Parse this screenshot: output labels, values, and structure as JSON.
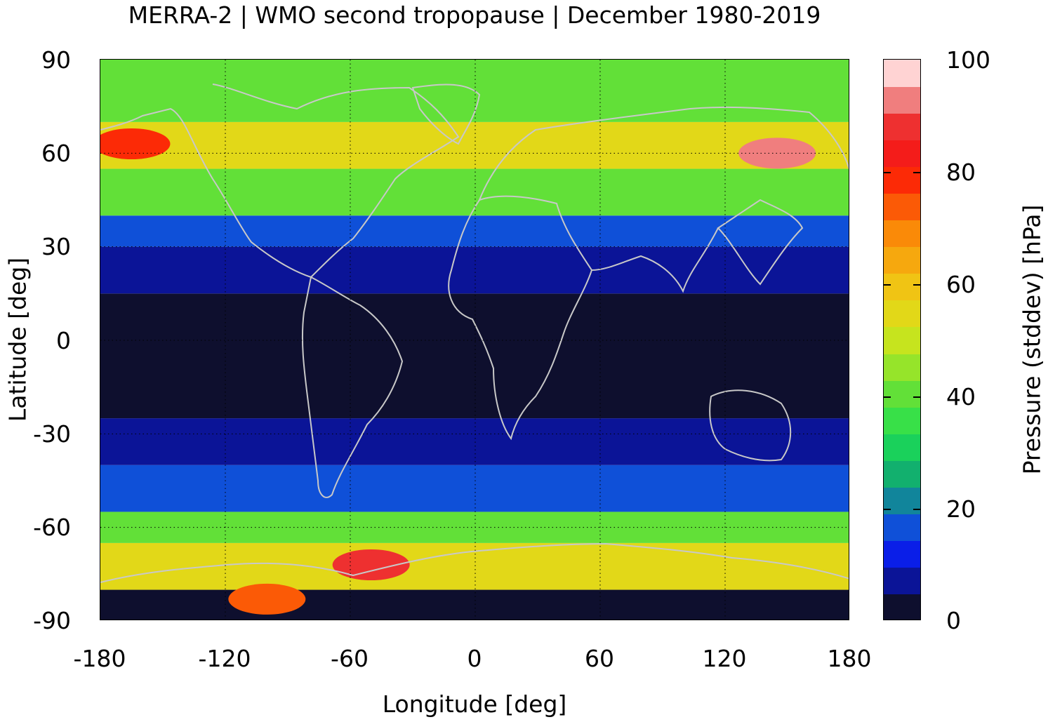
{
  "title": "MERRA-2 | WMO second tropopause | December 1980-2019",
  "chart_data": {
    "type": "heatmap",
    "title": "MERRA-2 | WMO second tropopause | December 1980-2019",
    "xlabel": "Longitude [deg]",
    "ylabel": "Latitude [deg]",
    "xlim": [
      -180,
      180
    ],
    "ylim": [
      -90,
      90
    ],
    "xticks": [
      "-180",
      "-120",
      "-60",
      "0",
      "60",
      "120",
      "180"
    ],
    "yticks": [
      "90",
      "60",
      "30",
      "0",
      "-30",
      "-60",
      "-90"
    ],
    "grid": "dotted at 60 deg longitude / 30 deg latitude",
    "colorbar": {
      "label": "Pressure (stddev) [hPa]",
      "range": [
        0,
        100
      ],
      "ticks": [
        "0",
        "20",
        "40",
        "60",
        "80",
        "100"
      ],
      "levels": [
        0,
        5,
        10,
        15,
        20,
        25,
        30,
        35,
        40,
        45,
        50,
        55,
        60,
        65,
        70,
        75,
        80,
        85,
        90,
        95,
        100
      ],
      "colors": [
        "#0e0f2e",
        "#0b1497",
        "#0a1ee8",
        "#0f50d8",
        "#11859b",
        "#12b06e",
        "#1ad15b",
        "#38e048",
        "#62e038",
        "#96e42a",
        "#c6e41e",
        "#e2d818",
        "#f0c414",
        "#f6a80e",
        "#fa8a08",
        "#fb5a06",
        "#fc2a06",
        "#f41c1a",
        "#ee3030",
        "#f07e7e",
        "#ffd3d3"
      ]
    },
    "field": {
      "description_bands": [
        {
          "lat": [
            -90,
            -80
          ],
          "value": 3
        },
        {
          "lat": [
            -80,
            -65
          ],
          "value": 55
        },
        {
          "lat": [
            -65,
            -55
          ],
          "value": 40
        },
        {
          "lat": [
            -55,
            -40
          ],
          "value": 15
        },
        {
          "lat": [
            -40,
            -25
          ],
          "value": 8
        },
        {
          "lat": [
            -25,
            15
          ],
          "value": 3
        },
        {
          "lat": [
            15,
            30
          ],
          "value": 8
        },
        {
          "lat": [
            30,
            40
          ],
          "value": 15
        },
        {
          "lat": [
            40,
            55
          ],
          "value": 40
        },
        {
          "lat": [
            55,
            70
          ],
          "value": 55
        },
        {
          "lat": [
            70,
            90
          ],
          "value": 40
        }
      ],
      "hotspots": [
        {
          "lon": 145,
          "lat": 60,
          "value": 95
        },
        {
          "lon": -165,
          "lat": 63,
          "value": 80
        },
        {
          "lon": -100,
          "lat": -83,
          "value": 75
        },
        {
          "lon": -50,
          "lat": -72,
          "value": 90
        }
      ]
    }
  }
}
